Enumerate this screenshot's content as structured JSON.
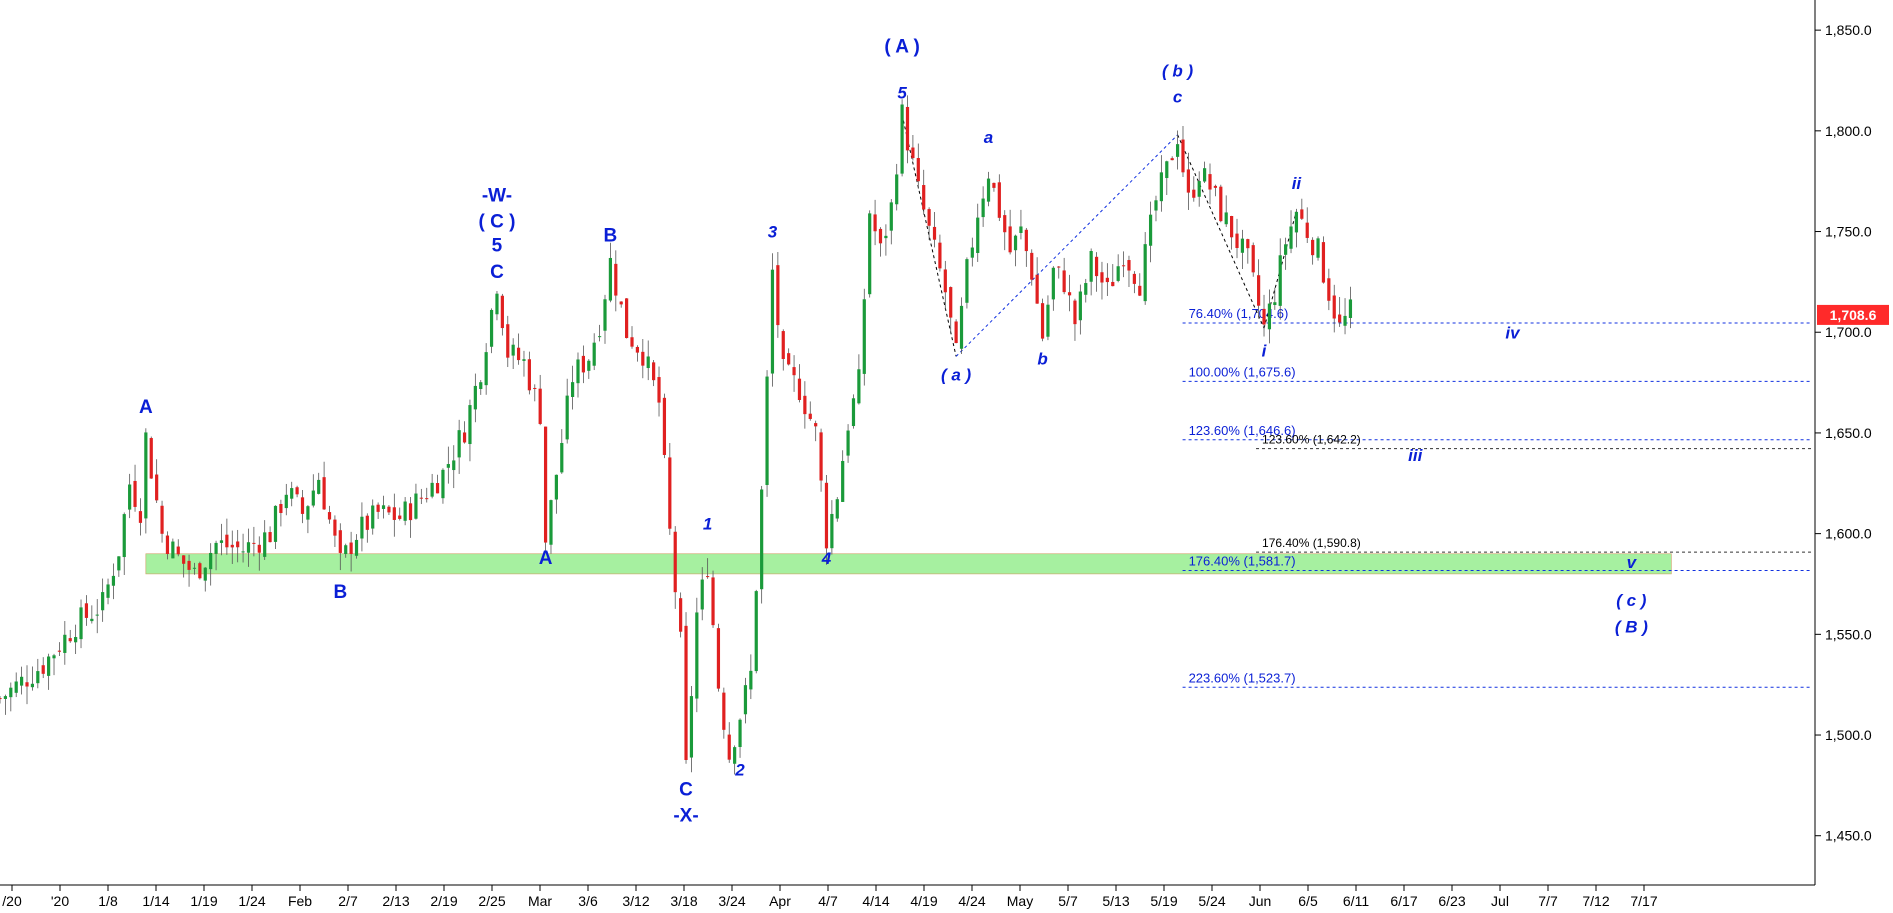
{
  "chart_data": {
    "type": "candlestick",
    "ylim": [
      1430,
      1860
    ],
    "y_ticks": [
      {
        "value": 1450,
        "label": "1,450.0"
      },
      {
        "value": 1500,
        "label": "1,500.0"
      },
      {
        "value": 1550,
        "label": "1,550.0"
      },
      {
        "value": 1600,
        "label": "1,600.0"
      },
      {
        "value": 1650,
        "label": "1,650.0"
      },
      {
        "value": 1700,
        "label": "1,700.0"
      },
      {
        "value": 1750,
        "label": "1,750.0"
      },
      {
        "value": 1800,
        "label": "1,800.0"
      },
      {
        "value": 1850,
        "label": "1,850.0"
      }
    ],
    "x_ticks": [
      "/20",
      "'20",
      "1/8",
      "1/14",
      "1/19",
      "1/24",
      "Feb",
      "2/7",
      "2/13",
      "2/19",
      "2/25",
      "Mar",
      "3/6",
      "3/12",
      "3/18",
      "3/24",
      "Apr",
      "4/7",
      "4/14",
      "4/19",
      "4/24",
      "May",
      "5/7",
      "5/13",
      "5/19",
      "5/24",
      "Jun",
      "6/5",
      "6/11",
      "6/17",
      "6/23",
      "Jul",
      "7/7",
      "7/12",
      "7/17"
    ],
    "last_price": {
      "value": 1708.6,
      "label": "1,708.6"
    },
    "price_path": [
      [
        0,
        1518
      ],
      [
        8,
        1535
      ],
      [
        14,
        1555
      ],
      [
        19,
        1565
      ],
      [
        22,
        1592
      ],
      [
        24,
        1625
      ],
      [
        26,
        1612
      ],
      [
        27,
        1648
      ],
      [
        30,
        1600
      ],
      [
        33,
        1588
      ],
      [
        36,
        1580
      ],
      [
        40,
        1595
      ],
      [
        45,
        1592
      ],
      [
        50,
        1600
      ],
      [
        53,
        1622
      ],
      [
        56,
        1610
      ],
      [
        59,
        1628
      ],
      [
        63,
        1585
      ],
      [
        66,
        1600
      ],
      [
        70,
        1610
      ],
      [
        74,
        1608
      ],
      [
        78,
        1618
      ],
      [
        82,
        1630
      ],
      [
        86,
        1652
      ],
      [
        89,
        1682
      ],
      [
        92,
        1725
      ],
      [
        94,
        1690
      ],
      [
        97,
        1685
      ],
      [
        100,
        1660
      ],
      [
        101,
        1597
      ],
      [
        103,
        1630
      ],
      [
        106,
        1678
      ],
      [
        109,
        1688
      ],
      [
        111,
        1705
      ],
      [
        113,
        1735
      ],
      [
        116,
        1700
      ],
      [
        119,
        1690
      ],
      [
        122,
        1665
      ],
      [
        124,
        1600
      ],
      [
        126,
        1545
      ],
      [
        127,
        1483
      ],
      [
        129,
        1560
      ],
      [
        131,
        1585
      ],
      [
        133,
        1525
      ],
      [
        135,
        1490
      ],
      [
        137,
        1510
      ],
      [
        139,
        1530
      ],
      [
        141,
        1620
      ],
      [
        143,
        1730
      ],
      [
        145,
        1680
      ],
      [
        148,
        1672
      ],
      [
        151,
        1650
      ],
      [
        153,
        1598
      ],
      [
        155,
        1620
      ],
      [
        157,
        1655
      ],
      [
        159,
        1675
      ],
      [
        161,
        1760
      ],
      [
        163,
        1740
      ],
      [
        165,
        1762
      ],
      [
        167,
        1808
      ],
      [
        170,
        1770
      ],
      [
        172,
        1750
      ],
      [
        175,
        1720
      ],
      [
        177,
        1688
      ],
      [
        179,
        1730
      ],
      [
        181,
        1760
      ],
      [
        183,
        1780
      ],
      [
        185,
        1760
      ],
      [
        187,
        1740
      ],
      [
        189,
        1750
      ],
      [
        191,
        1730
      ],
      [
        193,
        1698
      ],
      [
        195,
        1730
      ],
      [
        197,
        1725
      ],
      [
        199,
        1705
      ],
      [
        202,
        1735
      ],
      [
        205,
        1720
      ],
      [
        208,
        1740
      ],
      [
        211,
        1725
      ],
      [
        214,
        1765
      ],
      [
        216,
        1780
      ],
      [
        218,
        1798
      ],
      [
        220,
        1765
      ],
      [
        222,
        1780
      ],
      [
        224,
        1772
      ],
      [
        226,
        1760
      ],
      [
        228,
        1750
      ],
      [
        231,
        1735
      ],
      [
        234,
        1702
      ],
      [
        236,
        1720
      ],
      [
        238,
        1745
      ],
      [
        240,
        1760
      ],
      [
        242,
        1750
      ],
      [
        244,
        1740
      ],
      [
        246,
        1720
      ],
      [
        248,
        1702
      ],
      [
        250,
        1710
      ]
    ],
    "green_zone": {
      "low": 1580,
      "high": 1590
    },
    "fib_levels": [
      {
        "value": 1704.6,
        "label": "76.40% (1,704.6)",
        "group": "blue"
      },
      {
        "value": 1675.6,
        "label": "100.00% (1,675.6)",
        "group": "blue"
      },
      {
        "value": 1646.6,
        "label": "123.60% (1,646.6)",
        "group": "blue"
      },
      {
        "value": 1642.2,
        "label": "123.60% (1,642.2)",
        "group": "black"
      },
      {
        "value": 1590.8,
        "label": "176.40% (1,590.8)",
        "group": "black"
      },
      {
        "value": 1581.7,
        "label": "176.40% (1,581.7)",
        "group": "blue"
      },
      {
        "value": 1523.7,
        "label": "223.60% (1,523.7)",
        "group": "blue"
      }
    ],
    "annotations": [
      {
        "text": "A",
        "x": 27,
        "y": 1660,
        "style": "bold"
      },
      {
        "text": "B",
        "x": 63,
        "y": 1568,
        "style": "bold"
      },
      {
        "text": "-W-",
        "x": 92,
        "y": 1765,
        "style": "bold"
      },
      {
        "text": "( C )",
        "x": 92,
        "y": 1752,
        "style": "bold"
      },
      {
        "text": "5",
        "x": 92,
        "y": 1740,
        "style": "bold"
      },
      {
        "text": "C",
        "x": 92,
        "y": 1727,
        "style": "bold"
      },
      {
        "text": "A",
        "x": 101,
        "y": 1585,
        "style": "bold"
      },
      {
        "text": "B",
        "x": 113,
        "y": 1745,
        "style": "bold"
      },
      {
        "text": "C",
        "x": 127,
        "y": 1470,
        "style": "bold"
      },
      {
        "text": "-X-",
        "x": 127,
        "y": 1457,
        "style": "bold"
      },
      {
        "text": "1",
        "x": 131,
        "y": 1602,
        "style": "italic"
      },
      {
        "text": "2",
        "x": 137,
        "y": 1480,
        "style": "italic"
      },
      {
        "text": "3",
        "x": 143,
        "y": 1747,
        "style": "italic"
      },
      {
        "text": "4",
        "x": 153,
        "y": 1585,
        "style": "italic"
      },
      {
        "text": "( A )",
        "x": 167,
        "y": 1839,
        "style": "bold"
      },
      {
        "text": "5",
        "x": 167,
        "y": 1816,
        "style": "italic"
      },
      {
        "text": "( a )",
        "x": 177,
        "y": 1676,
        "style": "italic"
      },
      {
        "text": "a",
        "x": 183,
        "y": 1794,
        "style": "italic"
      },
      {
        "text": "b",
        "x": 193,
        "y": 1684,
        "style": "italic"
      },
      {
        "text": "( b )",
        "x": 218,
        "y": 1827,
        "style": "italic"
      },
      {
        "text": "c",
        "x": 218,
        "y": 1814,
        "style": "italic"
      },
      {
        "text": "i",
        "x": 234,
        "y": 1688,
        "style": "italic"
      },
      {
        "text": "ii",
        "x": 240,
        "y": 1771,
        "style": "italic"
      },
      {
        "text": "iv",
        "x": 280,
        "y": 1697,
        "style": "italic"
      },
      {
        "text": "iii",
        "x": 262,
        "y": 1636,
        "style": "italic"
      },
      {
        "text": "v",
        "x": 302,
        "y": 1583,
        "style": "italic"
      },
      {
        "text": "( c )",
        "x": 302,
        "y": 1564,
        "style": "italic"
      },
      {
        "text": "( B )",
        "x": 302,
        "y": 1551,
        "style": "italic"
      }
    ]
  }
}
